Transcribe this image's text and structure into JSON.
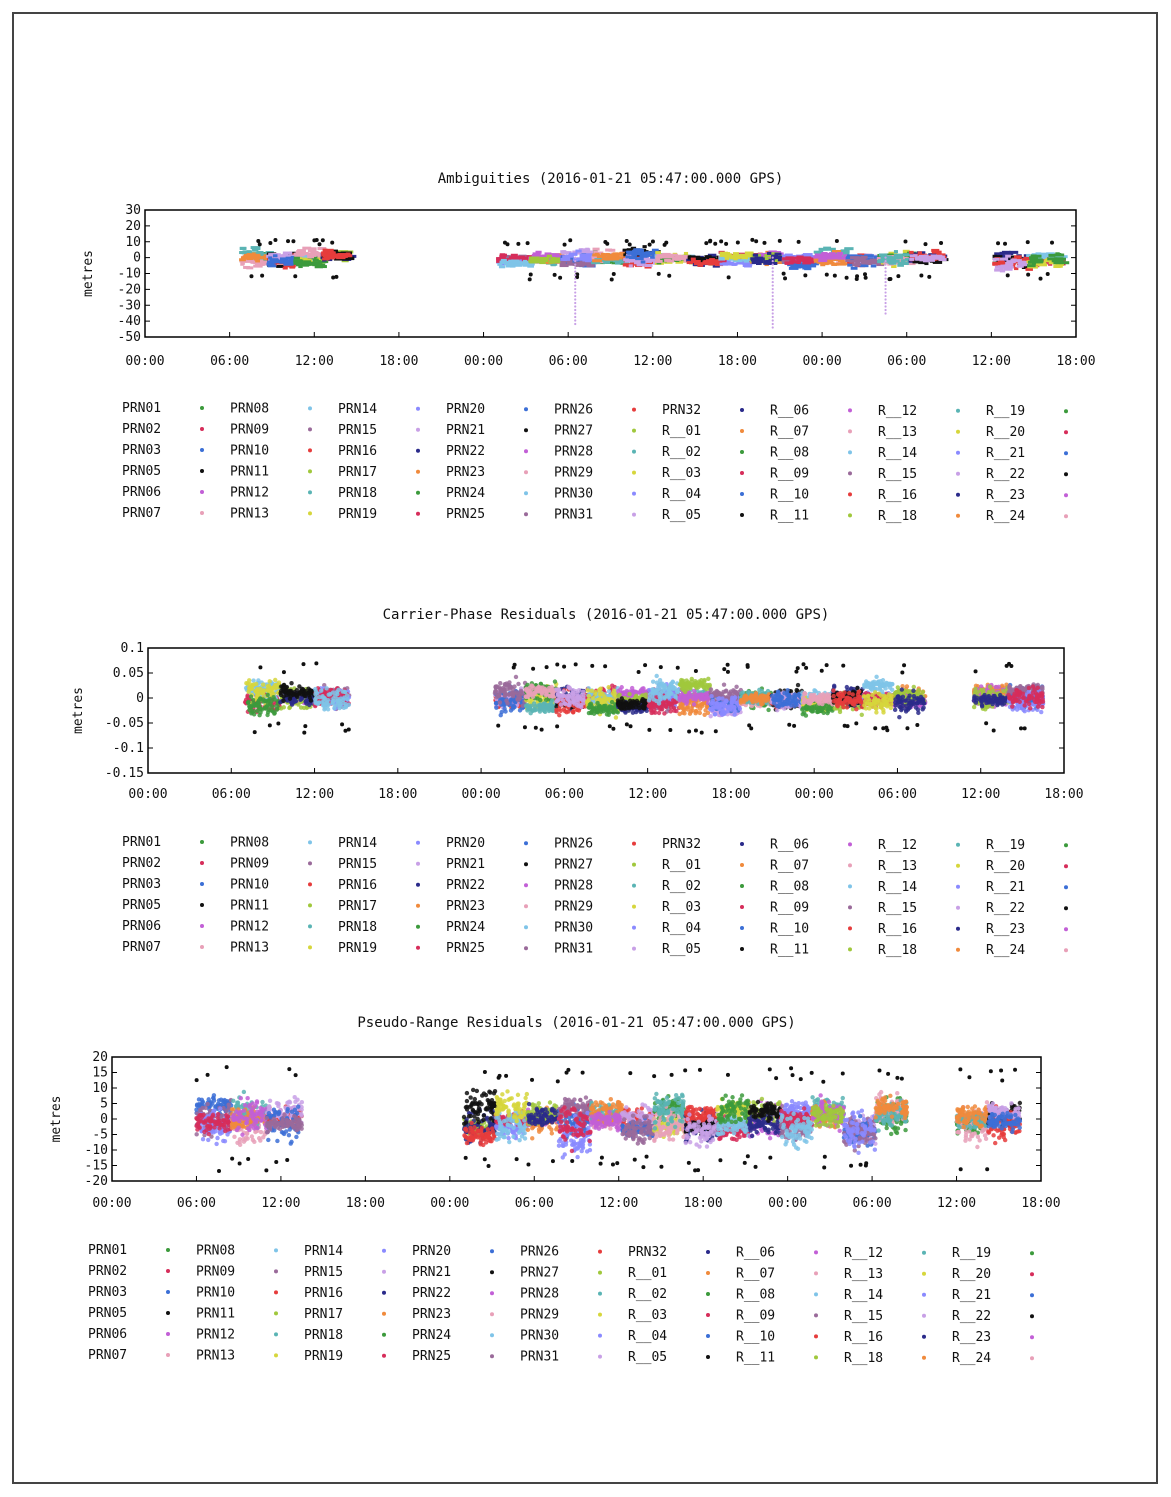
{
  "colors": {
    "frame": "#444444",
    "axis": "#000000",
    "series_palette": [
      "#3c9a3c",
      "#d62d5a",
      "#3c6fd6",
      "#111111",
      "#c25fd6",
      "#e8a0b8",
      "#7fc4e8",
      "#9a6a9a",
      "#e63c3c",
      "#a0c83c",
      "#5ab4b4",
      "#d6d63c",
      "#8a8aff",
      "#c8a0e6",
      "#2a2a8a",
      "#f08a3c"
    ]
  },
  "legend_items": [
    "PRN01",
    "PRN02",
    "PRN03",
    "PRN05",
    "PRN06",
    "PRN07",
    "PRN08",
    "PRN09",
    "PRN10",
    "PRN11",
    "PRN12",
    "PRN13",
    "PRN14",
    "PRN15",
    "PRN16",
    "PRN17",
    "PRN18",
    "PRN19",
    "PRN20",
    "PRN21",
    "PRN22",
    "PRN23",
    "PRN24",
    "PRN25",
    "PRN26",
    "PRN27",
    "PRN28",
    "PRN29",
    "PRN30",
    "PRN31",
    "PRN32",
    "R__01",
    "R__02",
    "R__03",
    "R__04",
    "R__05",
    "R__06",
    "R__07",
    "R__08",
    "R__09",
    "R__10",
    "R__11",
    "R__12",
    "R__13",
    "R__14",
    "R__15",
    "R__16",
    "R__18",
    "R__19",
    "R__20",
    "R__21",
    "R__22",
    "R__23",
    "R__24"
  ],
  "chart_data": [
    {
      "type": "scatter",
      "title": "Ambiguities (2016-01-21 05:47:00.000 GPS)",
      "ylabel": "metres",
      "xlabel": "",
      "x_tick_labels": [
        "00:00",
        "06:00",
        "12:00",
        "18:00",
        "00:00",
        "06:00",
        "12:00",
        "18:00",
        "00:00",
        "06:00",
        "12:00",
        "18:00"
      ],
      "xlim_hours": [
        0,
        66
      ],
      "ylim": [
        -50,
        30
      ],
      "y_ticks": [
        30,
        20,
        10,
        0,
        -10,
        -20,
        -30,
        -40,
        -50
      ],
      "data_segments_hours": [
        [
          6.8,
          14.5
        ],
        [
          25.0,
          56.5
        ],
        [
          60.2,
          65.0
        ]
      ],
      "band": [
        -10,
        8
      ],
      "outlier_dips": [
        {
          "x": 30.5,
          "y": -42
        },
        {
          "x": 44.5,
          "y": -45
        },
        {
          "x": 52.5,
          "y": -36
        }
      ],
      "grid": false
    },
    {
      "type": "scatter",
      "title": "Carrier-Phase Residuals (2016-01-21 05:47:00.000 GPS)",
      "ylabel": "metres",
      "xlabel": "",
      "x_tick_labels": [
        "00:00",
        "06:00",
        "12:00",
        "18:00",
        "00:00",
        "06:00",
        "12:00",
        "18:00",
        "00:00",
        "06:00",
        "12:00",
        "18:00"
      ],
      "xlim_hours": [
        0,
        66
      ],
      "ylim": [
        -0.15,
        0.1
      ],
      "y_ticks": [
        0.1,
        0.05,
        0,
        -0.05,
        -0.1,
        -0.15
      ],
      "y_tick_labels": [
        "0.1",
        "0.05",
        "0",
        "-0.05",
        "-0.1",
        "-0.15"
      ],
      "data_segments_hours": [
        [
          7.0,
          14.5
        ],
        [
          25.0,
          56.0
        ],
        [
          59.5,
          64.5
        ]
      ],
      "band": [
        -0.05,
        0.05
      ],
      "grid": false
    },
    {
      "type": "scatter",
      "title": "Pseudo-Range Residuals (2016-01-21 05:47:00.000 GPS)",
      "ylabel": "metres",
      "xlabel": "",
      "x_tick_labels": [
        "00:00",
        "06:00",
        "12:00",
        "18:00",
        "00:00",
        "06:00",
        "12:00",
        "18:00",
        "00:00",
        "06:00",
        "12:00",
        "18:00"
      ],
      "xlim_hours": [
        0,
        66
      ],
      "ylim": [
        -20,
        20
      ],
      "y_ticks": [
        20,
        15,
        10,
        5,
        0,
        -5,
        -10,
        -15,
        -20
      ],
      "data_segments_hours": [
        [
          6.0,
          13.5
        ],
        [
          25.0,
          56.5
        ],
        [
          60.0,
          64.5
        ]
      ],
      "band": [
        -12,
        12
      ],
      "grid": false
    }
  ]
}
